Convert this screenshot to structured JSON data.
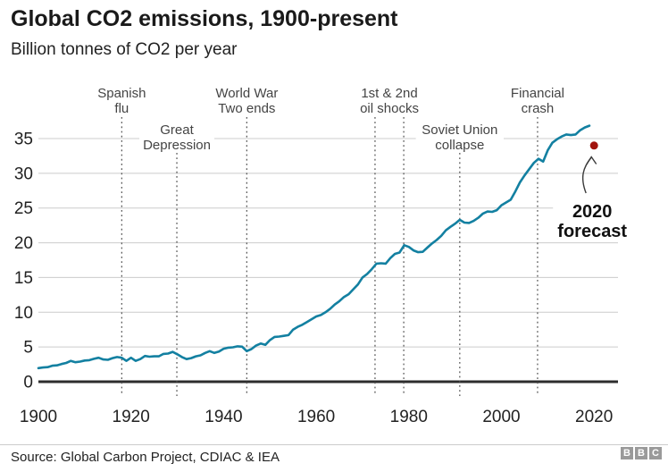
{
  "header": {
    "title": "Global CO2 emissions, 1900-present",
    "subtitle": "Billion tonnes of CO2 per year"
  },
  "footer": {
    "source": "Source:  Global Carbon Project, CDIAC & IEA",
    "logo_letters": [
      "B",
      "B",
      "C"
    ]
  },
  "chart_data": {
    "type": "line",
    "title": "Global CO2 emissions, 1900-present",
    "ylabel": "Billion tonnes of CO2 per year",
    "xlabel": "",
    "x_ticks": [
      1900,
      1920,
      1940,
      1960,
      1980,
      2000,
      2020
    ],
    "y_ticks": [
      0,
      5,
      10,
      15,
      20,
      25,
      30,
      35
    ],
    "xlim": [
      1900,
      2025
    ],
    "ylim": [
      0,
      35
    ],
    "grid": "horizontal",
    "legend": "none",
    "colors": {
      "line": "#1380a1",
      "forecast_dot": "#a2140e",
      "grid": "#cccccc",
      "axis": "#2d2d2d",
      "axis_text": "#222222",
      "dotted": "#4d4d4d",
      "annotation_text": "#444444",
      "arrow": "#3a3a3a",
      "forecast_text": "#111111"
    },
    "series": [
      {
        "name": "Global CO2 emissions",
        "color": "#1380a1",
        "points": [
          [
            1900,
            1.95
          ],
          [
            1901,
            2.05
          ],
          [
            1902,
            2.1
          ],
          [
            1903,
            2.3
          ],
          [
            1904,
            2.35
          ],
          [
            1905,
            2.55
          ],
          [
            1906,
            2.7
          ],
          [
            1907,
            3.0
          ],
          [
            1908,
            2.8
          ],
          [
            1909,
            2.9
          ],
          [
            1910,
            3.05
          ],
          [
            1911,
            3.1
          ],
          [
            1912,
            3.3
          ],
          [
            1913,
            3.45
          ],
          [
            1914,
            3.2
          ],
          [
            1915,
            3.15
          ],
          [
            1916,
            3.4
          ],
          [
            1917,
            3.55
          ],
          [
            1918,
            3.45
          ],
          [
            1919,
            3.0
          ],
          [
            1920,
            3.45
          ],
          [
            1921,
            3.0
          ],
          [
            1922,
            3.25
          ],
          [
            1923,
            3.7
          ],
          [
            1924,
            3.6
          ],
          [
            1925,
            3.65
          ],
          [
            1926,
            3.65
          ],
          [
            1927,
            4.0
          ],
          [
            1928,
            4.05
          ],
          [
            1929,
            4.3
          ],
          [
            1930,
            3.95
          ],
          [
            1931,
            3.55
          ],
          [
            1932,
            3.25
          ],
          [
            1933,
            3.4
          ],
          [
            1934,
            3.65
          ],
          [
            1935,
            3.8
          ],
          [
            1936,
            4.15
          ],
          [
            1937,
            4.4
          ],
          [
            1938,
            4.15
          ],
          [
            1939,
            4.35
          ],
          [
            1940,
            4.75
          ],
          [
            1941,
            4.9
          ],
          [
            1942,
            4.95
          ],
          [
            1943,
            5.1
          ],
          [
            1944,
            5.05
          ],
          [
            1945,
            4.4
          ],
          [
            1946,
            4.7
          ],
          [
            1947,
            5.2
          ],
          [
            1948,
            5.5
          ],
          [
            1949,
            5.3
          ],
          [
            1950,
            6.0
          ],
          [
            1951,
            6.45
          ],
          [
            1952,
            6.5
          ],
          [
            1953,
            6.6
          ],
          [
            1954,
            6.7
          ],
          [
            1955,
            7.5
          ],
          [
            1956,
            7.9
          ],
          [
            1957,
            8.2
          ],
          [
            1958,
            8.6
          ],
          [
            1959,
            9.0
          ],
          [
            1960,
            9.4
          ],
          [
            1961,
            9.6
          ],
          [
            1962,
            10.0
          ],
          [
            1963,
            10.5
          ],
          [
            1964,
            11.1
          ],
          [
            1965,
            11.6
          ],
          [
            1966,
            12.2
          ],
          [
            1967,
            12.6
          ],
          [
            1968,
            13.3
          ],
          [
            1969,
            14.0
          ],
          [
            1970,
            15.0
          ],
          [
            1971,
            15.5
          ],
          [
            1972,
            16.2
          ],
          [
            1973,
            17.0
          ],
          [
            1974,
            17.05
          ],
          [
            1975,
            17.0
          ],
          [
            1976,
            17.8
          ],
          [
            1977,
            18.4
          ],
          [
            1978,
            18.6
          ],
          [
            1979,
            19.65
          ],
          [
            1980,
            19.4
          ],
          [
            1981,
            18.9
          ],
          [
            1982,
            18.65
          ],
          [
            1983,
            18.7
          ],
          [
            1984,
            19.3
          ],
          [
            1985,
            19.9
          ],
          [
            1986,
            20.4
          ],
          [
            1987,
            21.0
          ],
          [
            1988,
            21.8
          ],
          [
            1989,
            22.3
          ],
          [
            1990,
            22.75
          ],
          [
            1991,
            23.3
          ],
          [
            1992,
            22.9
          ],
          [
            1993,
            22.85
          ],
          [
            1994,
            23.15
          ],
          [
            1995,
            23.6
          ],
          [
            1996,
            24.2
          ],
          [
            1997,
            24.5
          ],
          [
            1998,
            24.45
          ],
          [
            1999,
            24.7
          ],
          [
            2000,
            25.4
          ],
          [
            2001,
            25.8
          ],
          [
            2002,
            26.2
          ],
          [
            2003,
            27.4
          ],
          [
            2004,
            28.7
          ],
          [
            2005,
            29.7
          ],
          [
            2006,
            30.6
          ],
          [
            2007,
            31.5
          ],
          [
            2008,
            32.1
          ],
          [
            2009,
            31.7
          ],
          [
            2010,
            33.3
          ],
          [
            2011,
            34.4
          ],
          [
            2012,
            34.9
          ],
          [
            2013,
            35.3
          ],
          [
            2014,
            35.6
          ],
          [
            2015,
            35.5
          ],
          [
            2016,
            35.6
          ],
          [
            2017,
            36.2
          ],
          [
            2018,
            36.6
          ],
          [
            2019,
            36.85
          ]
        ]
      }
    ],
    "forecast_point": {
      "year": 2020,
      "value": 34.0,
      "color": "#a2140e",
      "label_lines": [
        "2020",
        "forecast"
      ]
    },
    "annotations": [
      {
        "label_lines": [
          "Spanish",
          "flu"
        ],
        "years": [
          1918
        ],
        "label_year": 1918,
        "row": 1
      },
      {
        "label_lines": [
          "Great",
          "Depression"
        ],
        "years": [
          1929.9
        ],
        "label_year": 1929.9,
        "row": 2
      },
      {
        "label_lines": [
          "World War",
          "Two ends"
        ],
        "years": [
          1945
        ],
        "label_year": 1945,
        "row": 1
      },
      {
        "label_lines": [
          "1st & 2nd",
          "oil shocks"
        ],
        "years": [
          1972.7,
          1978.9
        ],
        "label_year": 1975.8,
        "row": 1
      },
      {
        "label_lines": [
          "Soviet Union",
          "collapse"
        ],
        "years": [
          1991
        ],
        "label_year": 1991,
        "row": 2
      },
      {
        "label_lines": [
          "Financial",
          "crash"
        ],
        "years": [
          2007.8
        ],
        "label_year": 2007.8,
        "row": 1
      }
    ]
  }
}
